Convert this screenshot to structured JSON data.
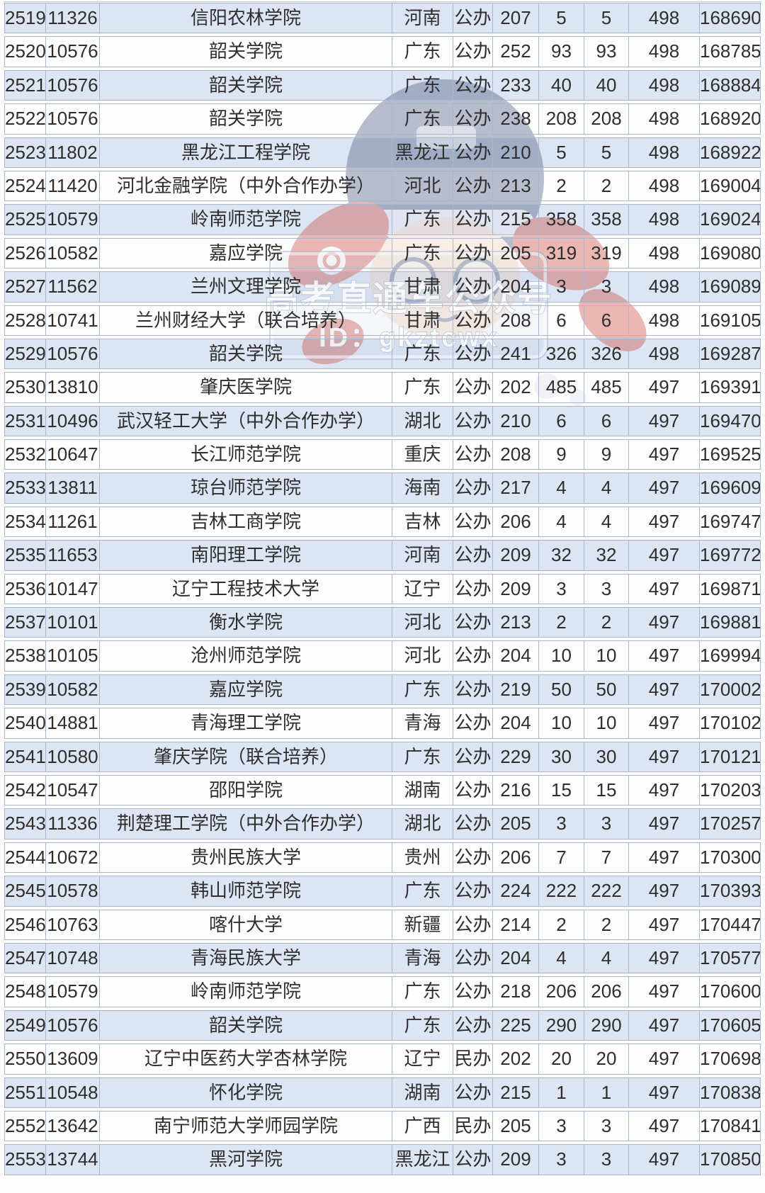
{
  "table": {
    "rows": [
      [
        "2519",
        "11326",
        "信阳农林学院",
        "河南",
        "公办",
        "207",
        "5",
        "5",
        "498",
        "168690"
      ],
      [
        "2520",
        "10576",
        "韶关学院",
        "广东",
        "公办",
        "252",
        "93",
        "93",
        "498",
        "168785"
      ],
      [
        "2521",
        "10576",
        "韶关学院",
        "广东",
        "公办",
        "233",
        "40",
        "40",
        "498",
        "168884"
      ],
      [
        "2522",
        "10576",
        "韶关学院",
        "广东",
        "公办",
        "238",
        "208",
        "208",
        "498",
        "168920"
      ],
      [
        "2523",
        "11802",
        "黑龙江工程学院",
        "黑龙江",
        "公办",
        "210",
        "5",
        "5",
        "498",
        "168922"
      ],
      [
        "2524",
        "11420",
        "河北金融学院（中外合作办学）",
        "河北",
        "公办",
        "213",
        "2",
        "2",
        "498",
        "169004"
      ],
      [
        "2525",
        "10579",
        "岭南师范学院",
        "广东",
        "公办",
        "215",
        "358",
        "358",
        "498",
        "169024"
      ],
      [
        "2526",
        "10582",
        "嘉应学院",
        "广东",
        "公办",
        "205",
        "319",
        "319",
        "498",
        "169080"
      ],
      [
        "2527",
        "11562",
        "兰州文理学院",
        "甘肃",
        "公办",
        "204",
        "3",
        "3",
        "498",
        "169089"
      ],
      [
        "2528",
        "10741",
        "兰州财经大学（联合培养）",
        "甘肃",
        "公办",
        "208",
        "6",
        "6",
        "498",
        "169105"
      ],
      [
        "2529",
        "10576",
        "韶关学院",
        "广东",
        "公办",
        "241",
        "326",
        "326",
        "498",
        "169287"
      ],
      [
        "2530",
        "13810",
        "肇庆医学院",
        "广东",
        "公办",
        "202",
        "485",
        "485",
        "497",
        "169391"
      ],
      [
        "2531",
        "10496",
        "武汉轻工大学（中外合作办学）",
        "湖北",
        "公办",
        "210",
        "6",
        "6",
        "497",
        "169470"
      ],
      [
        "2532",
        "10647",
        "长江师范学院",
        "重庆",
        "公办",
        "208",
        "9",
        "9",
        "497",
        "169525"
      ],
      [
        "2533",
        "13811",
        "琼台师范学院",
        "海南",
        "公办",
        "217",
        "4",
        "4",
        "497",
        "169609"
      ],
      [
        "2534",
        "11261",
        "吉林工商学院",
        "吉林",
        "公办",
        "206",
        "4",
        "4",
        "497",
        "169747"
      ],
      [
        "2535",
        "11653",
        "南阳理工学院",
        "河南",
        "公办",
        "209",
        "32",
        "32",
        "497",
        "169772"
      ],
      [
        "2536",
        "10147",
        "辽宁工程技术大学",
        "辽宁",
        "公办",
        "209",
        "3",
        "3",
        "497",
        "169871"
      ],
      [
        "2537",
        "10101",
        "衡水学院",
        "河北",
        "公办",
        "213",
        "2",
        "2",
        "497",
        "169881"
      ],
      [
        "2538",
        "10105",
        "沧州师范学院",
        "河北",
        "公办",
        "204",
        "10",
        "10",
        "497",
        "169994"
      ],
      [
        "2539",
        "10582",
        "嘉应学院",
        "广东",
        "公办",
        "219",
        "50",
        "50",
        "497",
        "170002"
      ],
      [
        "2540",
        "14881",
        "青海理工学院",
        "青海",
        "公办",
        "204",
        "10",
        "10",
        "497",
        "170102"
      ],
      [
        "2541",
        "10580",
        "肇庆学院（联合培养）",
        "广东",
        "公办",
        "229",
        "30",
        "30",
        "497",
        "170121"
      ],
      [
        "2542",
        "10547",
        "邵阳学院",
        "湖南",
        "公办",
        "216",
        "15",
        "15",
        "497",
        "170203"
      ],
      [
        "2543",
        "11336",
        "荆楚理工学院（中外合作办学）",
        "湖北",
        "公办",
        "205",
        "3",
        "3",
        "497",
        "170257"
      ],
      [
        "2544",
        "10672",
        "贵州民族大学",
        "贵州",
        "公办",
        "206",
        "7",
        "7",
        "497",
        "170300"
      ],
      [
        "2545",
        "10578",
        "韩山师范学院",
        "广东",
        "公办",
        "224",
        "222",
        "222",
        "497",
        "170393"
      ],
      [
        "2546",
        "10763",
        "喀什大学",
        "新疆",
        "公办",
        "214",
        "2",
        "2",
        "497",
        "170447"
      ],
      [
        "2547",
        "10748",
        "青海民族大学",
        "青海",
        "公办",
        "204",
        "4",
        "4",
        "497",
        "170577"
      ],
      [
        "2548",
        "10579",
        "岭南师范学院",
        "广东",
        "公办",
        "218",
        "206",
        "206",
        "497",
        "170600"
      ],
      [
        "2549",
        "10576",
        "韶关学院",
        "广东",
        "公办",
        "225",
        "290",
        "290",
        "497",
        "170605"
      ],
      [
        "2550",
        "13609",
        "辽宁中医药大学杏林学院",
        "辽宁",
        "民办",
        "202",
        "20",
        "20",
        "497",
        "170698"
      ],
      [
        "2551",
        "10548",
        "怀化学院",
        "湖南",
        "公办",
        "215",
        "1",
        "1",
        "497",
        "170838"
      ],
      [
        "2552",
        "13642",
        "南宁师范大学师园学院",
        "广西",
        "民办",
        "205",
        "3",
        "3",
        "497",
        "170841"
      ],
      [
        "2553",
        "13744",
        "黑河学院",
        "黑龙江",
        "公办",
        "209",
        "3",
        "3",
        "497",
        "170850"
      ]
    ]
  },
  "watermark": {
    "line1": "高考直通车公众号",
    "line2": "ID：gkztcwx"
  },
  "colors": {
    "row_alt_bg": "#dde5f4",
    "row_bg": "#fefeff",
    "border": "#a9b6cb",
    "text": "#2e2e2e",
    "watermark_navy": "#31436b",
    "watermark_red": "#c53224"
  }
}
